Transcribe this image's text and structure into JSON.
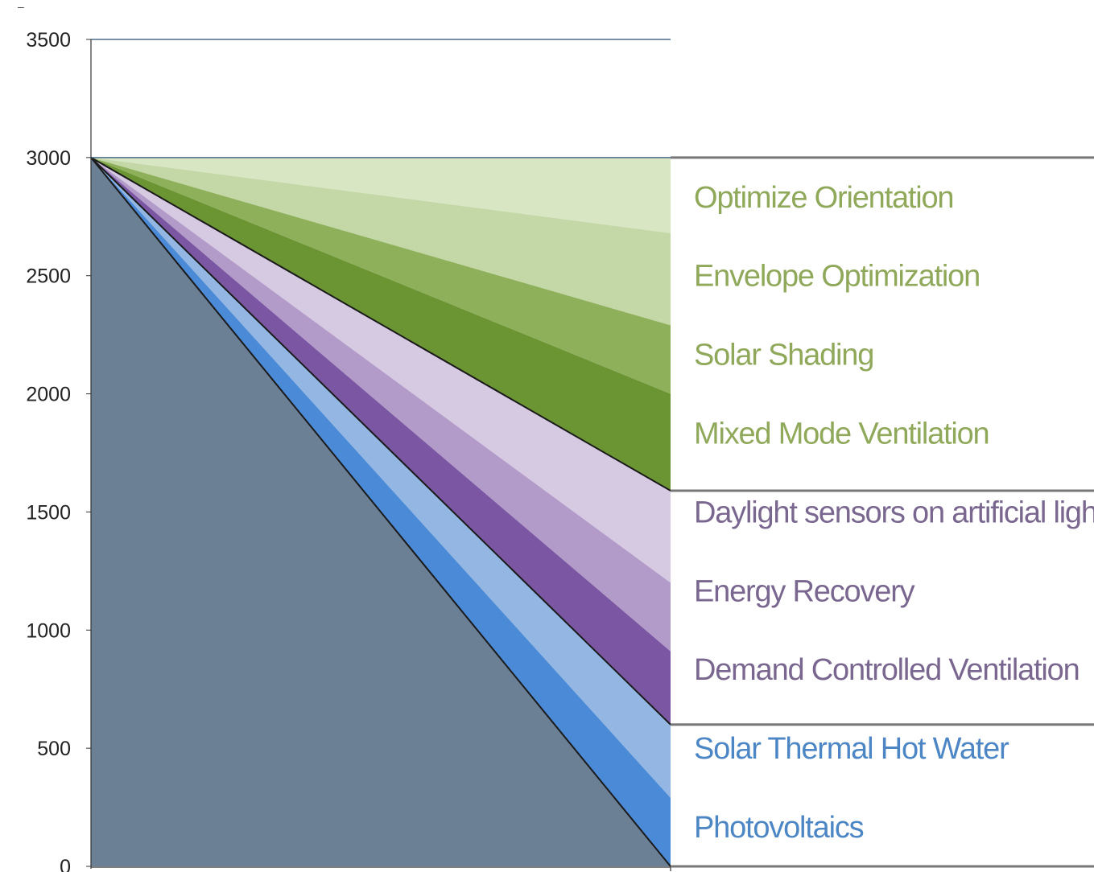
{
  "chart_data": {
    "type": "area",
    "title": "",
    "xlabel": "",
    "ylabel": "",
    "ylim": [
      0,
      3500
    ],
    "yticks": [
      0,
      500,
      1000,
      1500,
      2000,
      2500,
      3000,
      3500
    ],
    "grid": false,
    "x": [
      0,
      1
    ],
    "start_value": 3000,
    "series": [
      {
        "name": "Optimize Orientation",
        "start": 3000,
        "end": 3000,
        "color": "#d8e6c3",
        "text_color": "#8fa85a"
      },
      {
        "name": "Envelope Optimization",
        "start": 3000,
        "end": 2680,
        "color": "#c3d8a6",
        "text_color": "#8fa85a"
      },
      {
        "name": "Solar Shading",
        "start": 3000,
        "end": 2290,
        "color": "#8fb05a",
        "text_color": "#8fa85a"
      },
      {
        "name": "Mixed Mode Ventilation",
        "start": 3000,
        "end": 2000,
        "color": "#6b9433",
        "text_color": "#8fa85a"
      },
      {
        "name": "Daylight sensors on artificial ligh",
        "start": 3000,
        "end": 1590,
        "color": "#d6c9e2",
        "text_color": "#7a6790"
      },
      {
        "name": "Energy Recovery",
        "start": 3000,
        "end": 1200,
        "color": "#b29ac9",
        "text_color": "#7a6790"
      },
      {
        "name": "Demand Controlled Ventilation",
        "start": 3000,
        "end": 910,
        "color": "#7b57a3",
        "text_color": "#7a6790"
      },
      {
        "name": "Solar Thermal Hot Water",
        "start": 3000,
        "end": 600,
        "color": "#93b6e3",
        "text_color": "#4d86c4"
      },
      {
        "name": "Photovoltaics",
        "start": 3000,
        "end": 290,
        "color": "#4a8ad6",
        "text_color": "#4d86c4"
      }
    ],
    "remainder": {
      "end": 0,
      "color": "#6b7f95"
    },
    "group_separators": [
      3000,
      1590,
      600,
      0
    ]
  },
  "top_mark": "–"
}
